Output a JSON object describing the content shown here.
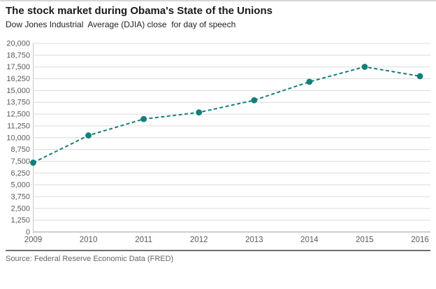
{
  "header": {
    "title": "The stock market during Obama's State of the Unions",
    "subtitle": "Dow Jones Industrial  Average (DJIA) close  for day of speech"
  },
  "footer": {
    "source": "Source: Federal Reserve Economic Data (FRED)"
  },
  "chart_data": {
    "type": "line",
    "title": "The stock market during Obama's State of the Unions",
    "subtitle": "Dow Jones Industrial  Average (DJIA) close  for day of speech",
    "xlabel": "",
    "ylabel": "",
    "categories": [
      "2009",
      "2010",
      "2011",
      "2012",
      "2013",
      "2014",
      "2015",
      "2016"
    ],
    "series": [
      {
        "name": "DJIA close for day of speech",
        "values": [
          7350,
          10236,
          11977,
          12676,
          13971,
          15929,
          17515,
          16516
        ]
      }
    ],
    "ylim": [
      0,
      20000
    ],
    "ytick_step": 1250,
    "ytick_labels": [
      "0",
      "1,250",
      "2,500",
      "3,750",
      "5,000",
      "6,250",
      "7,500",
      "8,750",
      "10,000",
      "11,250",
      "12,500",
      "13,750",
      "15,000",
      "16,250",
      "17,500",
      "18,750",
      "20,000"
    ],
    "grid": true,
    "legend_position": "none",
    "line_style": "dashed",
    "marker": "circle",
    "line_color": "#12807a",
    "grid_color": "#dcdcdc",
    "zero_line_color": "#a3a3a3",
    "axis_line_color": "#c8c8c8",
    "tick_label_color": "#5a5a5a",
    "source": "Source: Federal Reserve Economic Data (FRED)"
  }
}
